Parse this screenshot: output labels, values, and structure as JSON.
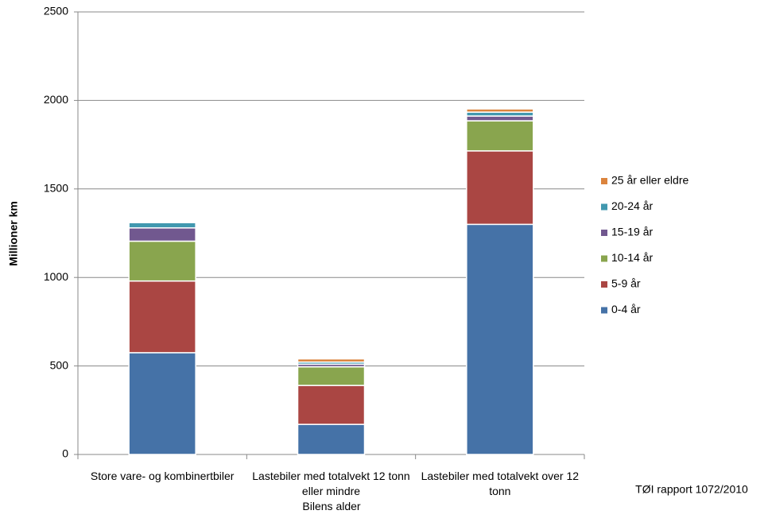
{
  "chart_data": {
    "type": "stacked_bar",
    "x_label": "Bilens alder",
    "y_label": "Millioner  km",
    "source": "TØI rapport 1072/2010",
    "categories": [
      "Store vare- og kombinertbiler",
      "Lastebiler med totalvekt 12 tonn eller mindre",
      "Lastebiler med totalvekt over 12 tonn"
    ],
    "series": [
      {
        "name": "0-4 år",
        "color": "#4572a7",
        "values": [
          575,
          170,
          1300
        ]
      },
      {
        "name": "5-9 år",
        "color": "#aa4643",
        "values": [
          405,
          220,
          415
        ]
      },
      {
        "name": "10-14 år",
        "color": "#89a54e",
        "values": [
          225,
          105,
          170
        ]
      },
      {
        "name": "15-19 år",
        "color": "#71588f",
        "values": [
          75,
          15,
          27
        ]
      },
      {
        "name": "20-24 år",
        "color": "#4198af",
        "values": [
          30,
          12,
          22
        ]
      },
      {
        "name": "25 år eller eldre",
        "color": "#db843d",
        "values": [
          5,
          18,
          18
        ]
      }
    ],
    "ylim": [
      0,
      2500
    ],
    "yticks": [
      0,
      500,
      1000,
      1500,
      2000,
      2500
    ],
    "grid": true
  }
}
